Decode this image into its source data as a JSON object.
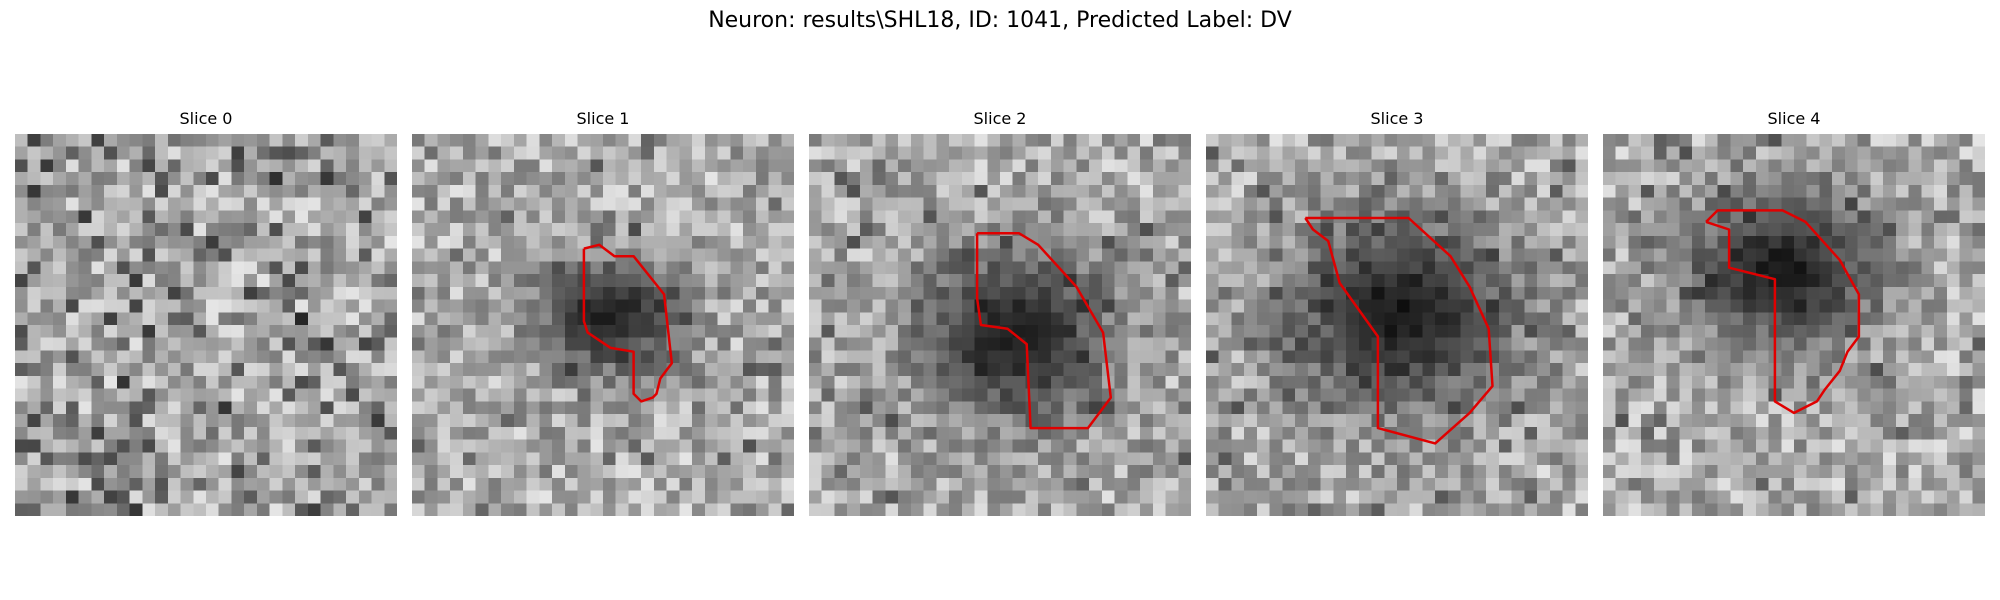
{
  "figure": {
    "title": "Neuron: results\\SHL18, ID: 1041, Predicted Label: DV",
    "outline_color": "#e00000"
  },
  "panels": [
    {
      "title": "Slice 0",
      "blob": null,
      "outline": []
    },
    {
      "title": "Slice 1",
      "blob": [
        0.5,
        0.46,
        0.22,
        0.18
      ],
      "outline": [
        [
          0.45,
          0.3
        ],
        [
          0.49,
          0.29
        ],
        [
          0.53,
          0.32
        ],
        [
          0.58,
          0.32
        ],
        [
          0.66,
          0.42
        ],
        [
          0.68,
          0.6
        ],
        [
          0.65,
          0.64
        ],
        [
          0.64,
          0.68
        ],
        [
          0.63,
          0.69
        ],
        [
          0.6,
          0.7
        ],
        [
          0.58,
          0.68
        ],
        [
          0.58,
          0.57
        ],
        [
          0.52,
          0.56
        ],
        [
          0.46,
          0.52
        ],
        [
          0.45,
          0.49
        ],
        [
          0.45,
          0.3
        ]
      ]
    },
    {
      "title": "Slice 2",
      "blob": [
        0.52,
        0.51,
        0.3,
        0.26
      ],
      "outline": [
        [
          0.44,
          0.26
        ],
        [
          0.55,
          0.26
        ],
        [
          0.6,
          0.29
        ],
        [
          0.7,
          0.4
        ],
        [
          0.77,
          0.52
        ],
        [
          0.79,
          0.69
        ],
        [
          0.73,
          0.77
        ],
        [
          0.58,
          0.77
        ],
        [
          0.57,
          0.55
        ],
        [
          0.52,
          0.51
        ],
        [
          0.45,
          0.5
        ],
        [
          0.44,
          0.43
        ],
        [
          0.44,
          0.26
        ]
      ]
    },
    {
      "title": "Slice 3",
      "blob": [
        0.5,
        0.45,
        0.35,
        0.3
      ],
      "outline": [
        [
          0.26,
          0.22
        ],
        [
          0.53,
          0.22
        ],
        [
          0.64,
          0.32
        ],
        [
          0.69,
          0.4
        ],
        [
          0.74,
          0.51
        ],
        [
          0.75,
          0.66
        ],
        [
          0.69,
          0.73
        ],
        [
          0.6,
          0.81
        ],
        [
          0.45,
          0.77
        ],
        [
          0.45,
          0.53
        ],
        [
          0.35,
          0.39
        ],
        [
          0.32,
          0.28
        ],
        [
          0.28,
          0.25
        ],
        [
          0.26,
          0.22
        ]
      ]
    },
    {
      "title": "Slice 4",
      "blob": [
        0.45,
        0.34,
        0.3,
        0.24
      ],
      "outline": [
        [
          0.27,
          0.23
        ],
        [
          0.3,
          0.2
        ],
        [
          0.47,
          0.2
        ],
        [
          0.53,
          0.23
        ],
        [
          0.62,
          0.33
        ],
        [
          0.67,
          0.42
        ],
        [
          0.67,
          0.53
        ],
        [
          0.64,
          0.57
        ],
        [
          0.62,
          0.62
        ],
        [
          0.58,
          0.67
        ],
        [
          0.56,
          0.7
        ],
        [
          0.5,
          0.73
        ],
        [
          0.45,
          0.7
        ],
        [
          0.45,
          0.38
        ],
        [
          0.33,
          0.35
        ],
        [
          0.33,
          0.25
        ],
        [
          0.27,
          0.23
        ]
      ]
    }
  ]
}
